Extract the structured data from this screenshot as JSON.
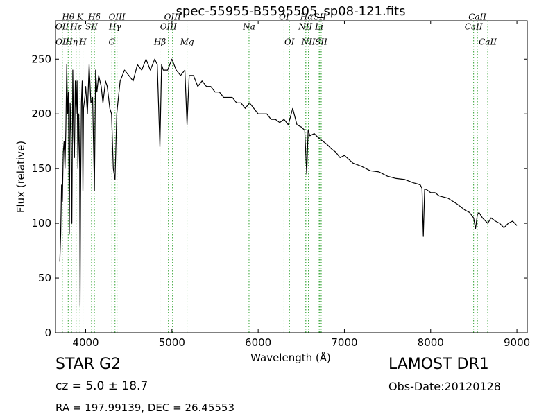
{
  "chart_data": {
    "type": "line",
    "title": "spec-55955-B5595505_sp08-121.fits",
    "xlabel": "Wavelength (Å)",
    "ylabel": "Flux (relative)",
    "xlim": [
      3650,
      9120
    ],
    "ylim": [
      0,
      285
    ],
    "xticks": [
      4000,
      5000,
      6000,
      7000,
      8000,
      9000
    ],
    "yticks": [
      0,
      50,
      100,
      150,
      200,
      250
    ],
    "grid": false,
    "legend": "none",
    "line_color": "#000000",
    "marker_color": "#2ca02c",
    "series": [
      {
        "x": [
          3700,
          3710,
          3720,
          3730,
          3740,
          3750,
          3760,
          3770,
          3780,
          3790,
          3800,
          3810,
          3820,
          3830,
          3840,
          3850,
          3860,
          3870,
          3880,
          3890,
          3900,
          3910,
          3920,
          3930,
          3935,
          3940,
          3950,
          3960,
          3968,
          3975,
          3990,
          4000,
          4020,
          4040,
          4060,
          4080,
          4101,
          4115,
          4130,
          4150,
          4180,
          4200,
          4230,
          4250,
          4280,
          4300,
          4320,
          4340,
          4360,
          4380,
          4400,
          4450,
          4500,
          4550,
          4600,
          4650,
          4700,
          4750,
          4800,
          4830,
          4861,
          4880,
          4900,
          4950,
          5000,
          5050,
          5100,
          5150,
          5175,
          5200,
          5250,
          5300,
          5350,
          5400,
          5450,
          5500,
          5550,
          5600,
          5650,
          5700,
          5750,
          5800,
          5850,
          5900,
          5950,
          6000,
          6050,
          6100,
          6150,
          6200,
          6250,
          6300,
          6350,
          6400,
          6450,
          6500,
          6540,
          6563,
          6580,
          6600,
          6650,
          6700,
          6750,
          6800,
          6850,
          6900,
          6950,
          7000,
          7100,
          7200,
          7300,
          7400,
          7500,
          7600,
          7700,
          7800,
          7850,
          7880,
          7900,
          7915,
          7930,
          7950,
          8000,
          8050,
          8100,
          8200,
          8300,
          8400,
          8450,
          8498,
          8520,
          8542,
          8560,
          8600,
          8662,
          8700,
          8750,
          8800,
          8850,
          8900,
          8950,
          9000
        ],
        "y": [
          65,
          90,
          135,
          120,
          165,
          175,
          150,
          185,
          245,
          200,
          220,
          90,
          210,
          180,
          100,
          240,
          180,
          160,
          230,
          200,
          230,
          150,
          200,
          150,
          25,
          120,
          210,
          230,
          130,
          205,
          215,
          225,
          200,
          245,
          210,
          215,
          130,
          240,
          220,
          235,
          225,
          210,
          230,
          225,
          205,
          200,
          150,
          140,
          200,
          215,
          230,
          240,
          235,
          230,
          245,
          240,
          250,
          240,
          250,
          245,
          170,
          245,
          240,
          240,
          250,
          240,
          235,
          240,
          190,
          235,
          235,
          225,
          230,
          225,
          225,
          220,
          220,
          215,
          215,
          215,
          210,
          210,
          205,
          210,
          205,
          200,
          200,
          200,
          195,
          195,
          192,
          195,
          190,
          205,
          190,
          188,
          185,
          145,
          185,
          180,
          182,
          178,
          175,
          172,
          168,
          165,
          160,
          162,
          155,
          152,
          148,
          147,
          143,
          141,
          140,
          137,
          136,
          135,
          132,
          88,
          131,
          131,
          128,
          128,
          125,
          123,
          118,
          112,
          110,
          105,
          95,
          108,
          110,
          105,
          100,
          105,
          102,
          100,
          96,
          100,
          102,
          98
        ]
      }
    ],
    "annotations": [
      {
        "text": "OII",
        "x": 3727,
        "y": 277,
        "row": 2
      },
      {
        "text": "OII",
        "x": 3729,
        "y": 263,
        "row": 3
      },
      {
        "text": "Hθ",
        "x": 3797,
        "y": 286,
        "row": 1
      },
      {
        "text": "Hη",
        "x": 3835,
        "y": 263,
        "row": 3
      },
      {
        "text": "Hε",
        "x": 3889,
        "y": 277,
        "row": 2
      },
      {
        "text": "K",
        "x": 3934,
        "y": 286,
        "row": 1
      },
      {
        "text": "H",
        "x": 3968,
        "y": 263,
        "row": 3
      },
      {
        "text": "SII",
        "x": 4068,
        "y": 277,
        "row": 2
      },
      {
        "text": "Hδ",
        "x": 4101,
        "y": 286,
        "row": 1
      },
      {
        "text": "G",
        "x": 4304,
        "y": 263,
        "row": 3
      },
      {
        "text": "Hγ",
        "x": 4340,
        "y": 277,
        "row": 2
      },
      {
        "text": "OIII",
        "x": 4363,
        "y": 286,
        "row": 1
      },
      {
        "text": "Hβ",
        "x": 4861,
        "y": 263,
        "row": 3
      },
      {
        "text": "OIII",
        "x": 4959,
        "y": 277,
        "row": 2
      },
      {
        "text": "OIII",
        "x": 5007,
        "y": 286,
        "row": 1
      },
      {
        "text": "Mg",
        "x": 5175,
        "y": 263,
        "row": 3
      },
      {
        "text": "Na",
        "x": 5894,
        "y": 277,
        "row": 2
      },
      {
        "text": "OI",
        "x": 6300,
        "y": 286,
        "row": 1
      },
      {
        "text": "OI",
        "x": 6363,
        "y": 263,
        "row": 3
      },
      {
        "text": "NII",
        "x": 6548,
        "y": 277,
        "row": 2
      },
      {
        "text": "Hα",
        "x": 6563,
        "y": 286,
        "row": 1
      },
      {
        "text": "NII",
        "x": 6583,
        "y": 263,
        "row": 3
      },
      {
        "text": "Li",
        "x": 6707,
        "y": 277,
        "row": 2
      },
      {
        "text": "SII",
        "x": 6716,
        "y": 286,
        "row": 1
      },
      {
        "text": "SII",
        "x": 6731,
        "y": 263,
        "row": 3
      },
      {
        "text": "CaII",
        "x": 8498,
        "y": 277,
        "row": 2
      },
      {
        "text": "CaII",
        "x": 8542,
        "y": 286,
        "row": 1
      },
      {
        "text": "CaII",
        "x": 8662,
        "y": 263,
        "row": 3
      }
    ]
  },
  "info": {
    "class": "STAR   G2",
    "survey": "LAMOST DR1",
    "cz": "cz = 5.0 ± 18.7",
    "obs_date": "Obs-Date:20120128",
    "radec": "RA = 197.99139, DEC = 26.45553"
  }
}
